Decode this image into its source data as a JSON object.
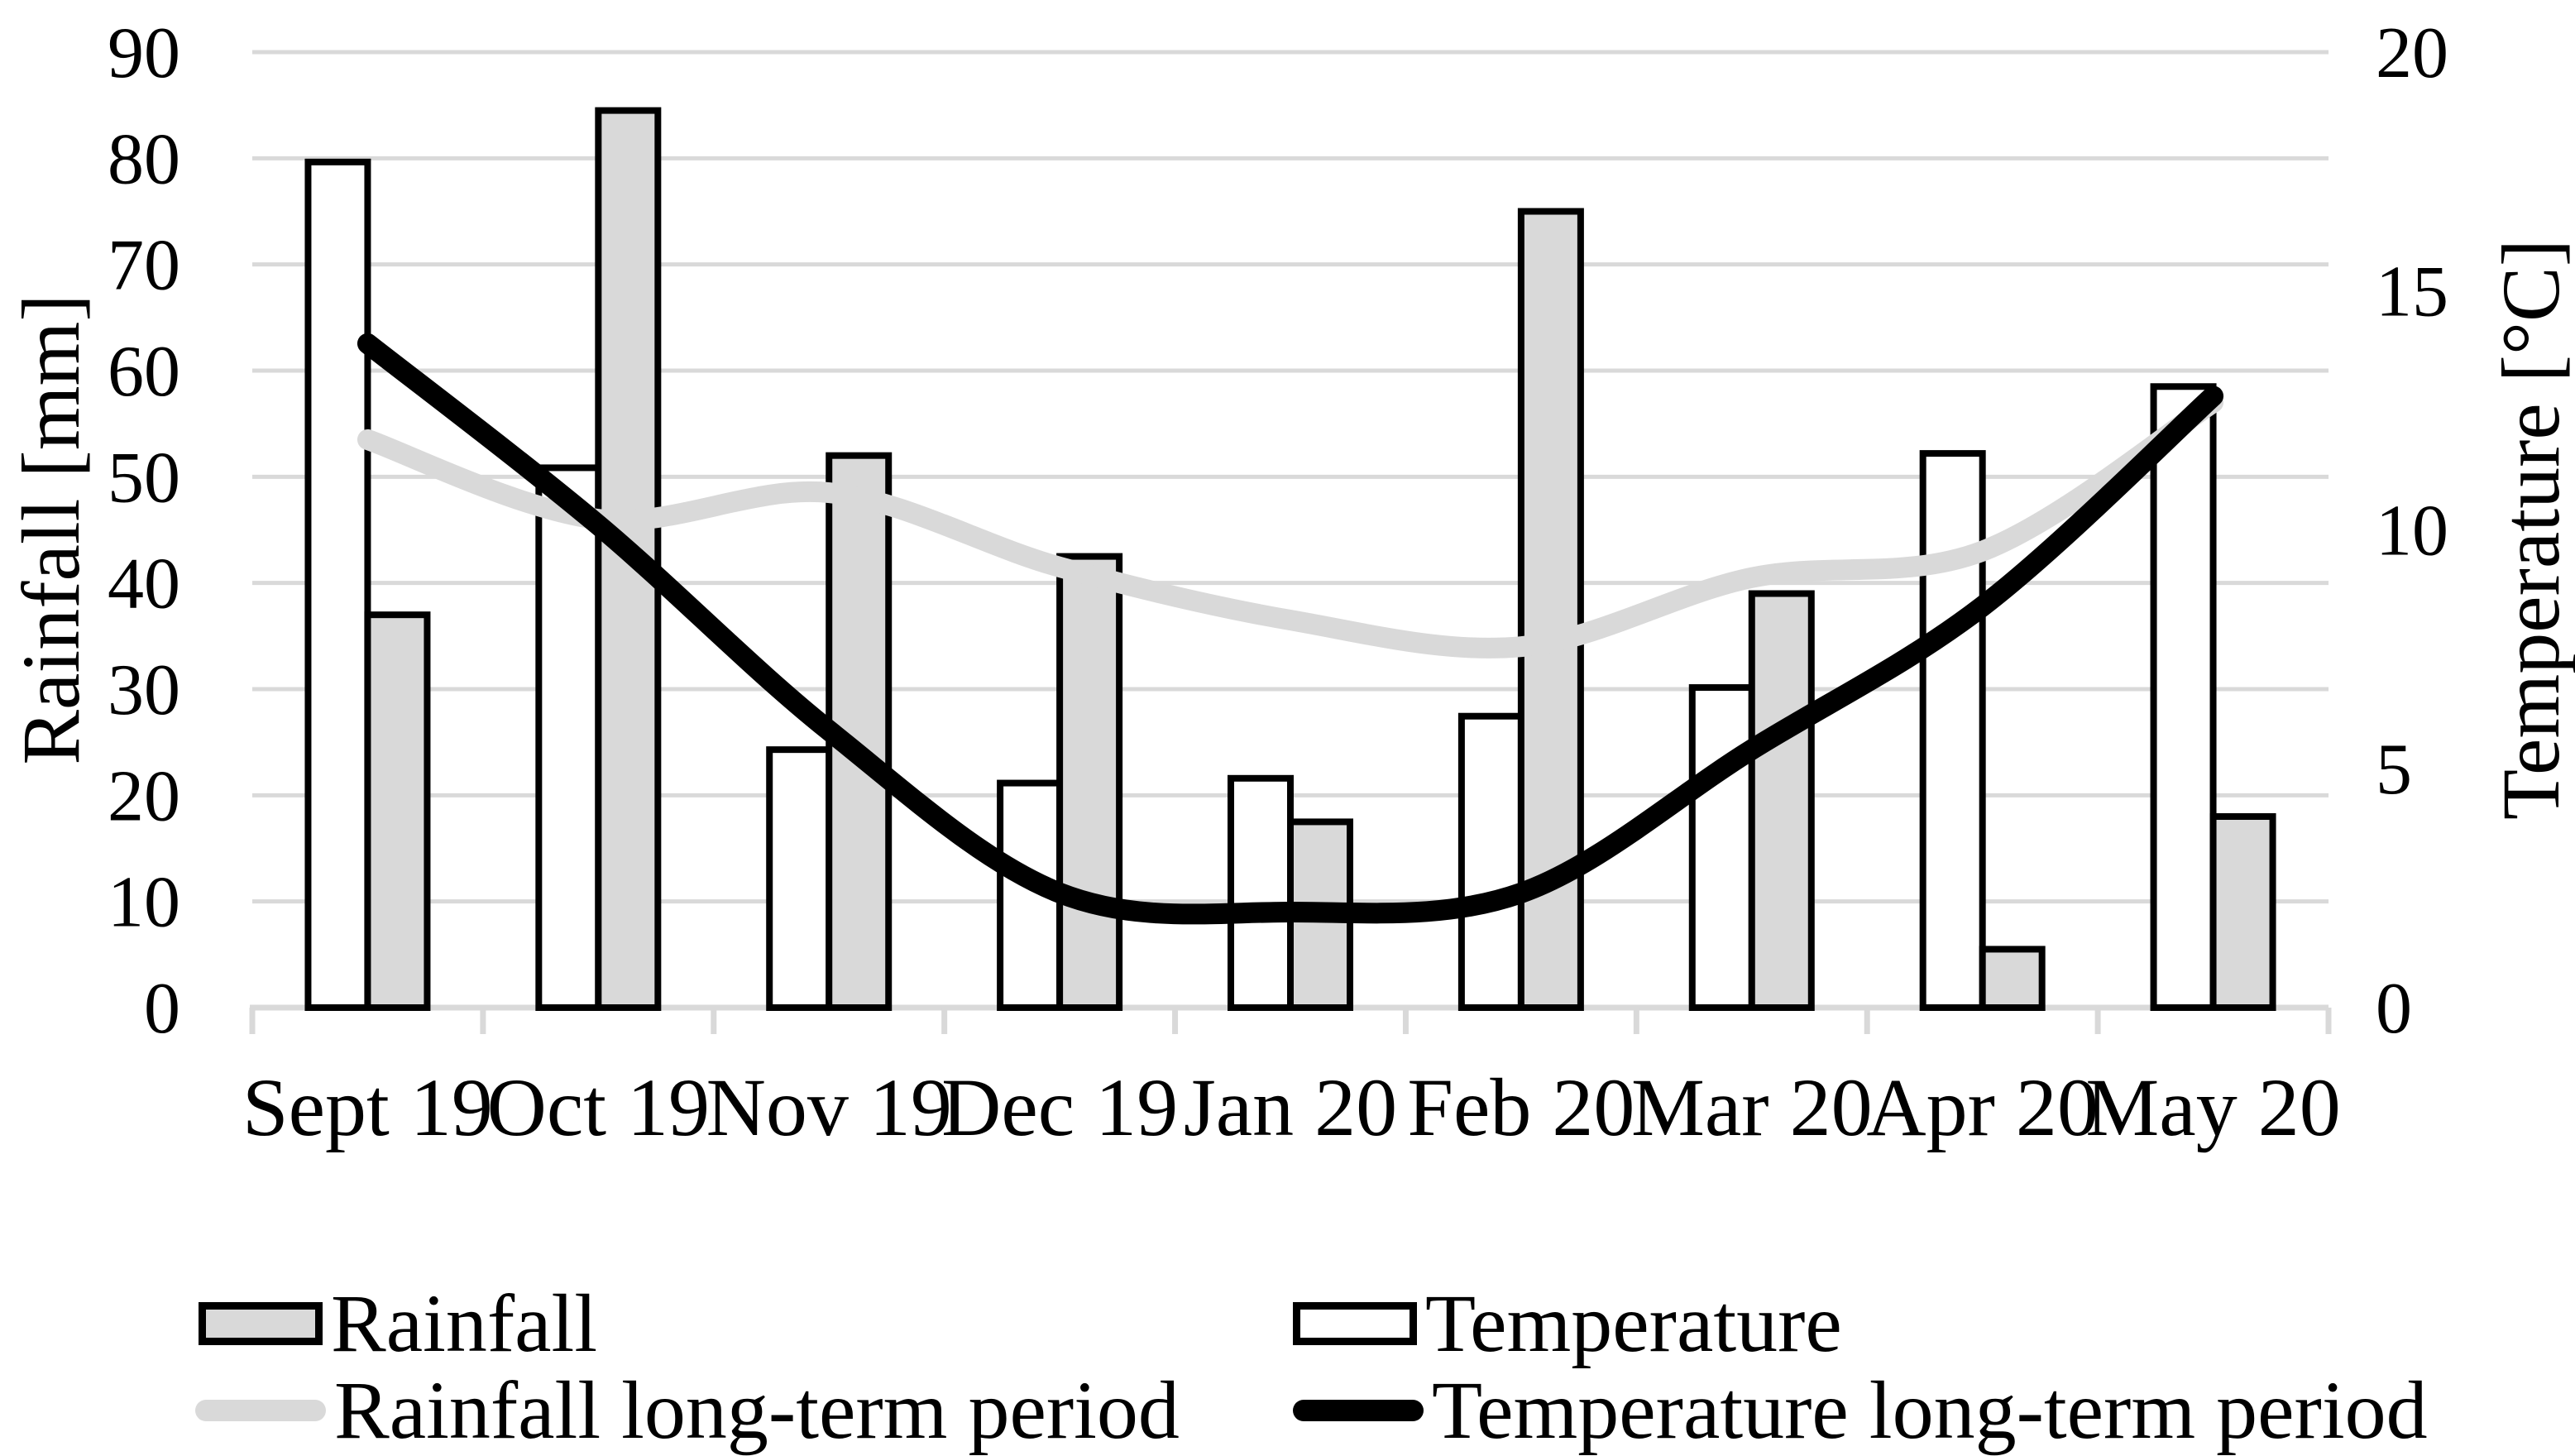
{
  "chart_data": {
    "type": "combo-bar-line",
    "title": "",
    "categories": [
      "Sept 19",
      "Oct 19",
      "Nov 19",
      "Dec 19",
      "Jan 20",
      "Feb 20",
      "Mar 20",
      "Apr 20",
      "May 20"
    ],
    "series": [
      {
        "name": "Temperature",
        "type": "bar",
        "axis": "right",
        "unit": "°C",
        "fill": "#ffffff",
        "stroke": "#000000",
        "values": [
          17.7,
          11.3,
          5.4,
          4.7,
          4.8,
          6.1,
          6.7,
          11.6,
          13.0
        ]
      },
      {
        "name": "Rainfall",
        "type": "bar",
        "axis": "left",
        "unit": "mm",
        "fill": "#d9d9d9",
        "stroke": "#000000",
        "values": [
          37,
          84.5,
          52,
          42.5,
          17.5,
          75,
          39,
          5.5,
          18
        ]
      },
      {
        "name": "Rainfall long-term period",
        "type": "line",
        "axis": "left",
        "unit": "mm",
        "color": "#d9d9d9",
        "values": [
          53.5,
          46,
          48.5,
          41.5,
          36.5,
          34,
          40.5,
          43,
          57
        ]
      },
      {
        "name": "Temperature long-term period",
        "type": "line",
        "axis": "right",
        "unit": "°C",
        "color": "#000000",
        "values": [
          13.9,
          10.1,
          5.8,
          2.4,
          2.0,
          2.4,
          5.4,
          8.4,
          12.8
        ]
      }
    ],
    "left_axis": {
      "title": "Rainfall [mm]",
      "min": 0,
      "max": 90,
      "step": 10,
      "ticks": [
        0,
        10,
        20,
        30,
        40,
        50,
        60,
        70,
        80,
        90
      ]
    },
    "right_axis": {
      "title": "Temperature [°C]",
      "min": 0,
      "max": 20,
      "step": 5,
      "ticks": [
        0,
        5,
        10,
        15,
        20
      ]
    },
    "grid": "horizontal",
    "legend_position": "bottom",
    "smooth_lines": true
  },
  "legend": {
    "items": [
      {
        "label": "Rainfall",
        "swatch": "bar-gray"
      },
      {
        "label": "Temperature",
        "swatch": "bar-white"
      },
      {
        "label": "Rainfall long-term period",
        "swatch": "line-gray"
      },
      {
        "label": "Temperature long-term period",
        "swatch": "line-black"
      }
    ]
  },
  "colors": {
    "bar_gray": "#d9d9d9",
    "bar_white": "#ffffff",
    "line_gray": "#d9d9d9",
    "line_black": "#000000",
    "gridline": "#d9d9d9",
    "ink": "#000000",
    "background": "#ffffff"
  }
}
